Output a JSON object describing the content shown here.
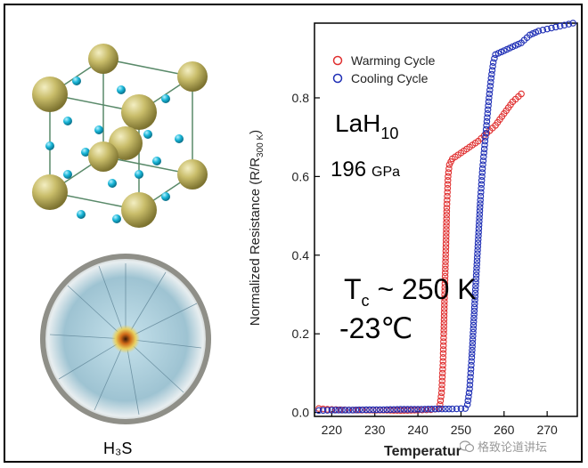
{
  "left_panel": {
    "h3s_label": "H₃S"
  },
  "annotations": {
    "material": "LaH",
    "material_sub": "10",
    "pressure_value": "196",
    "pressure_unit": "GPa",
    "tc_symbol": "T",
    "tc_sub": "c",
    "tc_value": " ~ 250 K",
    "celsius": "-23℃"
  },
  "watermark": {
    "text": "格致论道讲坛"
  },
  "chart_data": {
    "type": "scatter",
    "xlabel": "Temperatur",
    "ylabel_main": "Normalized Resistance (R/R",
    "ylabel_sub": "300 K",
    "ylabel_end": ")",
    "xlim": [
      216,
      277
    ],
    "ylim": [
      -0.01,
      0.99
    ],
    "xticks": [
      220,
      230,
      240,
      250,
      260,
      270
    ],
    "yticks": [
      0.0,
      0.2,
      0.4,
      0.6,
      0.8
    ],
    "ytick_labels": [
      "0.0",
      "0.2",
      "0.4",
      "0.6",
      "0.8"
    ],
    "legend_position": "top-left",
    "series": [
      {
        "name": "Warming Cycle",
        "color": "#e03030",
        "marker": "circle-open",
        "points": [
          [
            217,
            0.01
          ],
          [
            219,
            0.008
          ],
          [
            222,
            0.007
          ],
          [
            225,
            0.006
          ],
          [
            228,
            0.006
          ],
          [
            232,
            0.006
          ],
          [
            236,
            0.005
          ],
          [
            240,
            0.006
          ],
          [
            243,
            0.007
          ],
          [
            245,
            0.01
          ],
          [
            245.5,
            0.05
          ],
          [
            245.8,
            0.12
          ],
          [
            246,
            0.2
          ],
          [
            246.2,
            0.3
          ],
          [
            246.5,
            0.42
          ],
          [
            246.7,
            0.52
          ],
          [
            247,
            0.6
          ],
          [
            247.3,
            0.63
          ],
          [
            248,
            0.645
          ],
          [
            250,
            0.66
          ],
          [
            252,
            0.675
          ],
          [
            254,
            0.69
          ],
          [
            256,
            0.71
          ],
          [
            258,
            0.73
          ],
          [
            260,
            0.76
          ],
          [
            262,
            0.79
          ],
          [
            264,
            0.81
          ]
        ]
      },
      {
        "name": "Cooling Cycle",
        "color": "#1f2fb5",
        "marker": "circle-open",
        "points": [
          [
            217,
            0.005
          ],
          [
            220,
            0.006
          ],
          [
            224,
            0.006
          ],
          [
            228,
            0.007
          ],
          [
            232,
            0.007
          ],
          [
            236,
            0.008
          ],
          [
            240,
            0.008
          ],
          [
            244,
            0.009
          ],
          [
            248,
            0.009
          ],
          [
            251,
            0.01
          ],
          [
            251.5,
            0.02
          ],
          [
            252,
            0.06
          ],
          [
            252.5,
            0.14
          ],
          [
            253,
            0.24
          ],
          [
            253.5,
            0.34
          ],
          [
            254,
            0.44
          ],
          [
            254.5,
            0.54
          ],
          [
            255,
            0.62
          ],
          [
            255.5,
            0.68
          ],
          [
            256,
            0.74
          ],
          [
            256.5,
            0.8
          ],
          [
            257,
            0.85
          ],
          [
            257.5,
            0.89
          ],
          [
            258,
            0.91
          ],
          [
            260,
            0.92
          ],
          [
            262,
            0.93
          ],
          [
            264,
            0.94
          ],
          [
            266,
            0.96
          ],
          [
            268,
            0.97
          ],
          [
            270,
            0.975
          ],
          [
            272,
            0.98
          ],
          [
            274,
            0.985
          ],
          [
            276,
            0.99
          ]
        ]
      }
    ]
  }
}
